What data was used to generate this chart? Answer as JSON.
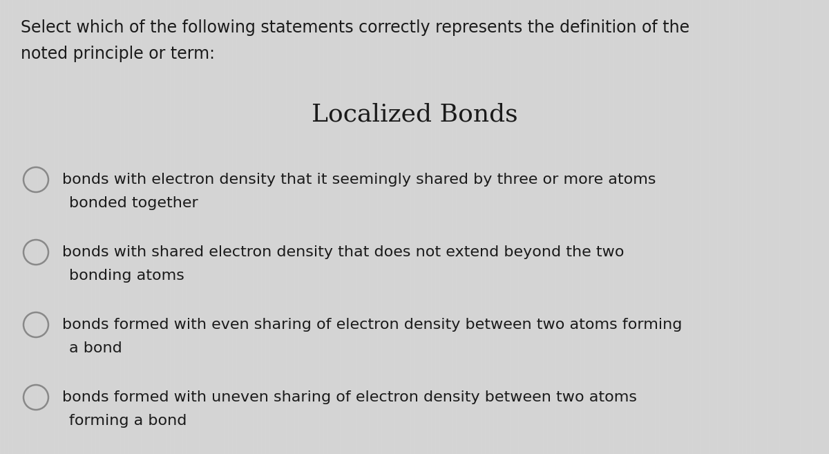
{
  "background_color": "#d4d4d4",
  "title_question_line1": "Select which of the following statements correctly represents the definition of the",
  "title_question_line2": "noted principle or term:",
  "term": "Localized Bonds",
  "options": [
    [
      "bonds with electron density that it seemingly shared by three or more atoms",
      "bonded together"
    ],
    [
      "bonds with shared electron density that does not extend beyond the two",
      "bonding atoms"
    ],
    [
      "bonds formed with even sharing of electron density between two atoms forming",
      "a bond"
    ],
    [
      "bonds formed with uneven sharing of electron density between two atoms",
      "forming a bond"
    ]
  ],
  "question_fontsize": 17,
  "term_fontsize": 26,
  "option_fontsize": 16,
  "text_color": "#1a1a1a",
  "circle_edge_color": "#888888",
  "figsize": [
    12.0,
    6.57
  ],
  "dpi": 100
}
